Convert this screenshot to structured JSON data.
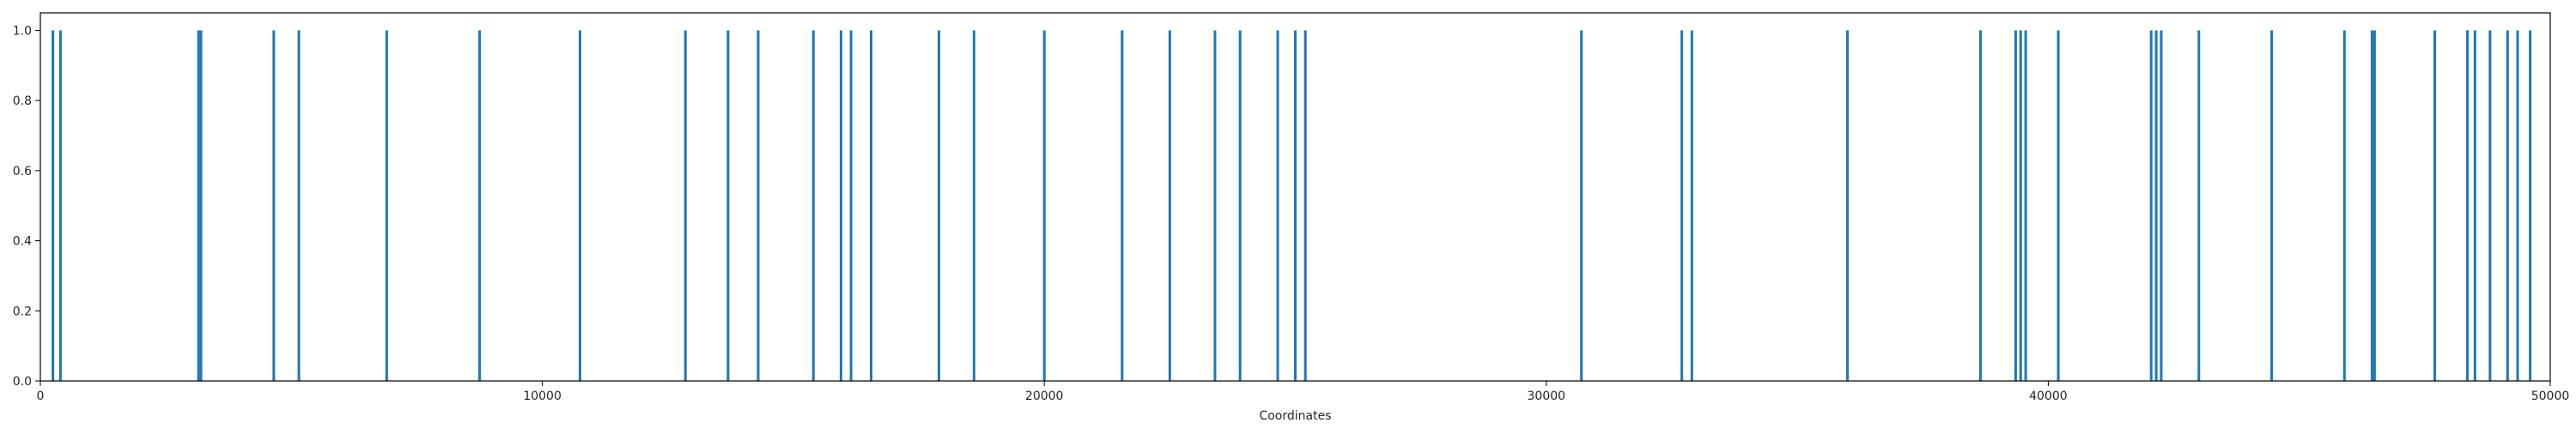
{
  "chart_data": {
    "type": "bar",
    "title": "",
    "xlabel": "Coordinates",
    "ylabel": "",
    "xlim": [
      0,
      50000
    ],
    "ylim": [
      0,
      1.05
    ],
    "grid": false,
    "bar_color": "#1f77b4",
    "x": [
      250,
      400,
      3150,
      3200,
      4650,
      5150,
      6900,
      8750,
      10750,
      12850,
      13700,
      14300,
      15400,
      15950,
      16150,
      16550,
      17900,
      18600,
      20000,
      21550,
      22500,
      23400,
      23900,
      24650,
      25000,
      25200,
      30700,
      32700,
      32900,
      36000,
      38650,
      39350,
      39450,
      39550,
      40200,
      42050,
      42150,
      42250,
      43000,
      44450,
      45900,
      46450,
      46500,
      47700,
      48350,
      48500,
      48800,
      49150,
      49350,
      49600
    ],
    "values": [
      1,
      1,
      1,
      1,
      1,
      1,
      1,
      1,
      1,
      1,
      1,
      1,
      1,
      1,
      1,
      1,
      1,
      1,
      1,
      1,
      1,
      1,
      1,
      1,
      1,
      1,
      1,
      1,
      1,
      1,
      1,
      1,
      1,
      1,
      1,
      1,
      1,
      1,
      1,
      1,
      1,
      1,
      1,
      1,
      1,
      1,
      1,
      1,
      1,
      1
    ],
    "x_ticks": [
      "0",
      "10000",
      "20000",
      "30000",
      "40000",
      "50000"
    ],
    "y_ticks": [
      "0.0",
      "0.2",
      "0.4",
      "0.6",
      "0.8",
      "1.0"
    ]
  }
}
